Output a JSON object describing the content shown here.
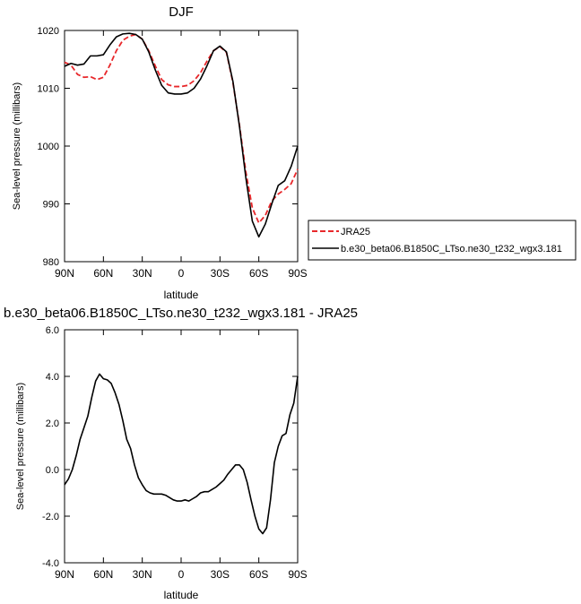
{
  "chart_data": [
    {
      "type": "line",
      "title": "DJF",
      "xlabel": "latitude",
      "ylabel": "Sea-level pressure (millibars)",
      "x_ticks": [
        {
          "value": -90,
          "label": "90N"
        },
        {
          "value": -60,
          "label": "60N"
        },
        {
          "value": -30,
          "label": "30N"
        },
        {
          "value": 0,
          "label": "0"
        },
        {
          "value": 30,
          "label": "30S"
        },
        {
          "value": 60,
          "label": "60S"
        },
        {
          "value": 90,
          "label": "90S"
        }
      ],
      "y_ticks": [
        {
          "value": 980,
          "label": "980"
        },
        {
          "value": 990,
          "label": "990"
        },
        {
          "value": 1000,
          "label": "1000"
        },
        {
          "value": 1010,
          "label": "1010"
        },
        {
          "value": 1020,
          "label": "1020"
        }
      ],
      "xlim": [
        -90,
        90
      ],
      "ylim": [
        980,
        1020
      ],
      "legend_position": "right",
      "series": [
        {
          "name": "JRA25",
          "color": "#e8282b",
          "dash": true,
          "x": [
            -90,
            -85,
            -80,
            -75,
            -70,
            -65,
            -60,
            -55,
            -50,
            -45,
            -40,
            -35,
            -30,
            -25,
            -20,
            -15,
            -10,
            -5,
            0,
            5,
            10,
            15,
            20,
            25,
            30,
            35,
            40,
            45,
            50,
            55,
            60,
            65,
            70,
            75,
            80,
            85,
            90
          ],
          "y": [
            1014.5,
            1014.0,
            1012.4,
            1011.9,
            1012.0,
            1011.5,
            1011.9,
            1014.0,
            1016.5,
            1018.3,
            1019.0,
            1019.3,
            1018.5,
            1016.5,
            1013.9,
            1011.5,
            1010.6,
            1010.3,
            1010.3,
            1010.5,
            1011.3,
            1012.7,
            1014.7,
            1016.5,
            1017.2,
            1016.2,
            1011.0,
            1003.7,
            995.5,
            989.3,
            986.7,
            988.0,
            990.5,
            991.7,
            992.5,
            993.5,
            996.0
          ]
        },
        {
          "name": "b.e30_beta06.B1850C_LTso.ne30_t232_wgx3.181",
          "color": "#000000",
          "dash": false,
          "x": [
            -90,
            -85,
            -80,
            -75,
            -70,
            -65,
            -60,
            -55,
            -50,
            -45,
            -40,
            -35,
            -30,
            -25,
            -20,
            -15,
            -10,
            -5,
            0,
            5,
            10,
            15,
            20,
            25,
            30,
            35,
            40,
            45,
            50,
            55,
            60,
            65,
            70,
            75,
            80,
            85,
            90
          ],
          "y": [
            1013.8,
            1014.3,
            1014.0,
            1014.2,
            1015.6,
            1015.6,
            1015.8,
            1017.5,
            1018.9,
            1019.4,
            1019.5,
            1019.3,
            1018.5,
            1016.3,
            1013.2,
            1010.5,
            1009.2,
            1009.0,
            1009.0,
            1009.2,
            1010.0,
            1011.6,
            1013.9,
            1016.5,
            1017.3,
            1016.3,
            1011.2,
            1003.5,
            994.5,
            987.0,
            984.3,
            986.5,
            990.0,
            993.2,
            994.0,
            996.5,
            1000.0
          ]
        }
      ]
    },
    {
      "type": "line",
      "title": "b.e30_beta06.B1850C_LTso.ne30_t232_wgx3.181 - JRA25",
      "xlabel": "latitude",
      "ylabel": "Sea-level pressure (millibars)",
      "x_ticks": [
        {
          "value": -90,
          "label": "90N"
        },
        {
          "value": -60,
          "label": "60N"
        },
        {
          "value": -30,
          "label": "30N"
        },
        {
          "value": 0,
          "label": "0"
        },
        {
          "value": 30,
          "label": "30S"
        },
        {
          "value": 60,
          "label": "60S"
        },
        {
          "value": 90,
          "label": "90S"
        }
      ],
      "y_ticks": [
        {
          "value": -4,
          "label": "-4.0"
        },
        {
          "value": -2,
          "label": "-2.0"
        },
        {
          "value": 0,
          "label": "0.0"
        },
        {
          "value": 2,
          "label": "2.0"
        },
        {
          "value": 4,
          "label": "4.0"
        },
        {
          "value": 6,
          "label": "6.0"
        }
      ],
      "xlim": [
        -90,
        90
      ],
      "ylim": [
        -4,
        6
      ],
      "series": [
        {
          "color": "#000000",
          "dash": false,
          "x": [
            -90,
            -87,
            -84,
            -81,
            -78,
            -75,
            -72,
            -69,
            -66,
            -63,
            -60,
            -57,
            -54,
            -51,
            -48,
            -45,
            -42,
            -39,
            -36,
            -33,
            -30,
            -27,
            -24,
            -21,
            -18,
            -15,
            -12,
            -9,
            -6,
            -3,
            0,
            3,
            6,
            9,
            12,
            15,
            18,
            21,
            24,
            27,
            30,
            33,
            36,
            39,
            42,
            45,
            48,
            51,
            54,
            57,
            60,
            63,
            66,
            69,
            72,
            75,
            78,
            81,
            84,
            87,
            90
          ],
          "y": [
            -0.65,
            -0.4,
            0.0,
            0.6,
            1.3,
            1.8,
            2.3,
            3.1,
            3.8,
            4.1,
            3.9,
            3.85,
            3.7,
            3.3,
            2.8,
            2.1,
            1.3,
            0.9,
            0.2,
            -0.35,
            -0.65,
            -0.9,
            -1.0,
            -1.05,
            -1.05,
            -1.05,
            -1.1,
            -1.2,
            -1.3,
            -1.35,
            -1.35,
            -1.3,
            -1.35,
            -1.25,
            -1.15,
            -1.0,
            -0.95,
            -0.95,
            -0.85,
            -0.75,
            -0.6,
            -0.45,
            -0.2,
            0.0,
            0.2,
            0.2,
            0.0,
            -0.55,
            -1.3,
            -2.0,
            -2.55,
            -2.75,
            -2.5,
            -1.3,
            0.3,
            1.0,
            1.45,
            1.55,
            2.35,
            2.85,
            4.0
          ]
        }
      ]
    }
  ]
}
